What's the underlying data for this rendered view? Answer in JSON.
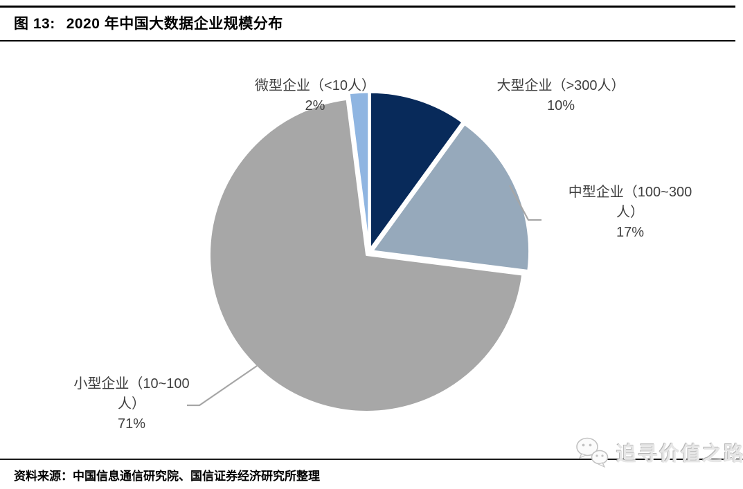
{
  "page": {
    "title_prefix": "图 13:",
    "title": "2020 年中国大数据企业规模分布",
    "source_label": "资料来源：",
    "source_text": "中国信息通信研究院、国信证券经济研究所整理",
    "watermark_text": "追寻价值之路"
  },
  "colors": {
    "large": "#082a5a",
    "medium": "#96a9bb",
    "small": "#a7a7a7",
    "micro": "#8fb5e1",
    "leader_line": "#a6a6a6",
    "label_text": "#3f3f3f",
    "rule": "#000000"
  },
  "chart_data": {
    "type": "pie",
    "title": "2020 年中国大数据企业规模分布",
    "start_angle_deg": 0,
    "direction": "clockwise",
    "legend_position": "none",
    "labels_style": "outside-with-leader-lines",
    "slices": [
      {
        "name": "大型企业（>300人）",
        "value": 10,
        "pct": "10%",
        "color": "#082a5a",
        "label_lines": [
          "大型企业（>300人）"
        ]
      },
      {
        "name": "中型企业（100~300人）",
        "value": 17,
        "pct": "17%",
        "color": "#96a9bb",
        "label_lines": [
          "中型企业（100~300",
          "人）"
        ]
      },
      {
        "name": "小型企业（10~100人）",
        "value": 71,
        "pct": "71%",
        "color": "#a7a7a7",
        "label_lines": [
          "小型企业（10~100",
          "人）"
        ]
      },
      {
        "name": "微型企业（<10人）",
        "value": 2,
        "pct": "2%",
        "color": "#8fb5e1",
        "label_lines": [
          "微型企业（<10人）"
        ]
      }
    ]
  }
}
